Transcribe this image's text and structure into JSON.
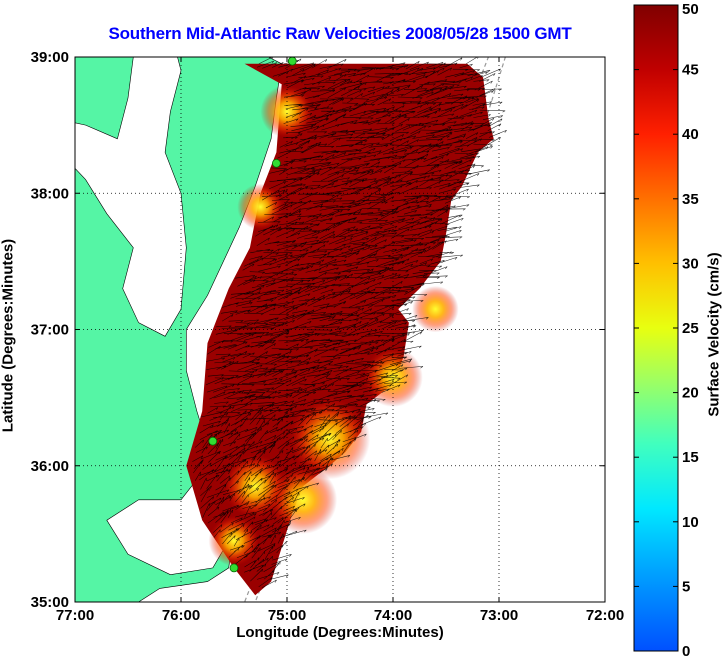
{
  "title": "Southern Mid-Atlantic Raw Velocities 2008/05/28 1500 GMT",
  "x_axis": {
    "label": "Longitude (Degrees:Minutes)",
    "ticks": [
      {
        "value": -77,
        "label": "77:00"
      },
      {
        "value": -76,
        "label": "76:00"
      },
      {
        "value": -75,
        "label": "75:00"
      },
      {
        "value": -74,
        "label": "74:00"
      },
      {
        "value": -73,
        "label": "73:00"
      },
      {
        "value": -72,
        "label": "72:00"
      }
    ],
    "range": [
      -77,
      -72
    ]
  },
  "y_axis": {
    "label": "Latitude (Degrees:Minutes)",
    "ticks": [
      {
        "value": 35,
        "label": "35:00"
      },
      {
        "value": 36,
        "label": "36:00"
      },
      {
        "value": 37,
        "label": "37:00"
      },
      {
        "value": 38,
        "label": "38:00"
      },
      {
        "value": 39,
        "label": "39:00"
      }
    ],
    "range": [
      35,
      39
    ]
  },
  "colorbar": {
    "label": "Surface Velocity (cm/s)",
    "range": [
      0,
      50
    ],
    "ticks": [
      {
        "value": 0,
        "label": "0"
      },
      {
        "value": 5,
        "label": "5"
      },
      {
        "value": 10,
        "label": "10"
      },
      {
        "value": 15,
        "label": "15"
      },
      {
        "value": 20,
        "label": "20"
      },
      {
        "value": 25,
        "label": "25"
      },
      {
        "value": 30,
        "label": "30"
      },
      {
        "value": 35,
        "label": "35"
      },
      {
        "value": 40,
        "label": "40"
      },
      {
        "value": 45,
        "label": "45"
      },
      {
        "value": 50,
        "label": "50"
      }
    ]
  },
  "colors": {
    "land": "#55f5a5",
    "title": "#0000ff",
    "station": "#33dd33",
    "max_velocity": "#800000"
  },
  "grid": "dotted",
  "map_data": {
    "coverage_outline": [
      [
        -75.4,
        38.95
      ],
      [
        -74.7,
        38.95
      ],
      [
        -73.6,
        38.95
      ],
      [
        -73.3,
        38.95
      ],
      [
        -73.15,
        38.85
      ],
      [
        -73.1,
        38.55
      ],
      [
        -73.05,
        38.4
      ],
      [
        -73.2,
        38.3
      ],
      [
        -73.35,
        38.05
      ],
      [
        -73.45,
        37.95
      ],
      [
        -73.5,
        37.7
      ],
      [
        -73.55,
        37.5
      ],
      [
        -73.75,
        37.3
      ],
      [
        -73.95,
        37.15
      ],
      [
        -73.85,
        37.05
      ],
      [
        -73.9,
        36.8
      ],
      [
        -74.0,
        36.6
      ],
      [
        -74.25,
        36.45
      ],
      [
        -74.3,
        36.25
      ],
      [
        -74.45,
        36.1
      ],
      [
        -74.6,
        36.0
      ],
      [
        -74.85,
        35.85
      ],
      [
        -74.95,
        35.65
      ],
      [
        -75.05,
        35.4
      ],
      [
        -75.15,
        35.15
      ],
      [
        -75.3,
        35.05
      ],
      [
        -75.5,
        35.25
      ],
      [
        -75.8,
        35.6
      ],
      [
        -75.95,
        36.0
      ],
      [
        -75.8,
        36.4
      ],
      [
        -75.75,
        36.9
      ],
      [
        -75.55,
        37.3
      ],
      [
        -75.35,
        37.6
      ],
      [
        -75.25,
        38.0
      ],
      [
        -75.1,
        38.3
      ],
      [
        -75.05,
        38.8
      ]
    ],
    "high_velocity_zones": [
      {
        "lon": -74.6,
        "lat": 36.2,
        "speed": 22
      },
      {
        "lon": -74.85,
        "lat": 35.75,
        "speed": 28
      },
      {
        "lon": -75.3,
        "lat": 35.85,
        "speed": 30
      },
      {
        "lon": -74.0,
        "lat": 36.65,
        "speed": 32
      },
      {
        "lon": -73.6,
        "lat": 37.15,
        "speed": 38
      },
      {
        "lon": -75.0,
        "lat": 38.6,
        "speed": 35
      },
      {
        "lon": -75.25,
        "lat": 37.9,
        "speed": 38
      },
      {
        "lon": -75.5,
        "lat": 35.45,
        "speed": 36
      }
    ],
    "stations": [
      {
        "lon": -74.95,
        "lat": 38.97
      },
      {
        "lon": -75.1,
        "lat": 38.22
      },
      {
        "lon": -75.7,
        "lat": 36.18
      },
      {
        "lon": -75.5,
        "lat": 35.25
      }
    ]
  }
}
